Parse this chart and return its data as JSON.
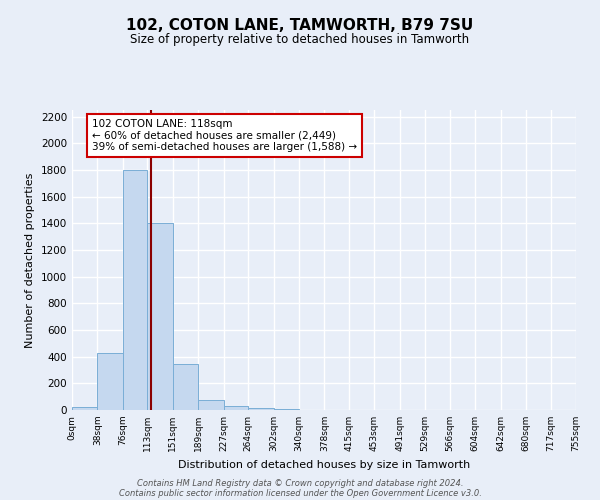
{
  "title": "102, COTON LANE, TAMWORTH, B79 7SU",
  "subtitle": "Size of property relative to detached houses in Tamworth",
  "xlabel": "Distribution of detached houses by size in Tamworth",
  "ylabel": "Number of detached properties",
  "bin_edges": [
    0,
    38,
    76,
    113,
    151,
    189,
    227,
    264,
    302,
    340,
    378,
    415,
    453,
    491,
    529,
    566,
    604,
    642,
    680,
    717,
    755
  ],
  "bin_counts": [
    20,
    425,
    1800,
    1400,
    345,
    75,
    30,
    15,
    5,
    0,
    0,
    0,
    0,
    0,
    0,
    0,
    0,
    0,
    0,
    0
  ],
  "bar_color": "#c5d8ef",
  "bar_edge_color": "#7aaed6",
  "property_line_x": 118,
  "property_line_color": "#8b0000",
  "annotation_line1": "102 COTON LANE: 118sqm",
  "annotation_line2": "← 60% of detached houses are smaller (2,449)",
  "annotation_line3": "39% of semi-detached houses are larger (1,588) →",
  "annotation_box_color": "#ffffff",
  "annotation_box_edge_color": "#cc0000",
  "ylim": [
    0,
    2250
  ],
  "yticks": [
    0,
    200,
    400,
    600,
    800,
    1000,
    1200,
    1400,
    1600,
    1800,
    2000,
    2200
  ],
  "background_color": "#e8eef8",
  "grid_color": "#ffffff",
  "footer_line1": "Contains HM Land Registry data © Crown copyright and database right 2024.",
  "footer_line2": "Contains public sector information licensed under the Open Government Licence v3.0."
}
